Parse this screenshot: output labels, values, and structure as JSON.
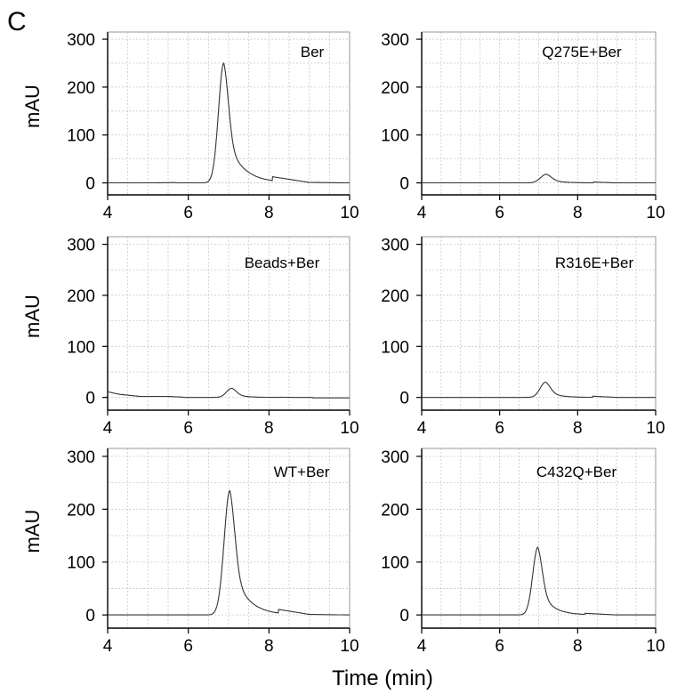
{
  "figure": {
    "panel_letter": "C"
  },
  "chart_data": [
    {
      "type": "line",
      "title": "",
      "inner_label": "Ber",
      "xlabel": "",
      "ylabel": "mAU",
      "xlim": [
        4,
        10
      ],
      "ylim": [
        -25,
        315
      ],
      "xticks": [
        4,
        6,
        8,
        10
      ],
      "yticks": [
        0,
        100,
        200,
        300
      ],
      "grid": true,
      "series": [
        {
          "peak": {
            "x": 6.88,
            "height": 250,
            "rise_sigma": 0.13,
            "tail_tau": 0.38
          },
          "baseline": 0,
          "x": [
            4,
            5,
            6,
            6.5,
            6.7,
            6.8,
            6.88,
            7.0,
            7.2,
            7.5,
            8,
            9,
            10
          ],
          "y": [
            0,
            0,
            1,
            11,
            102,
            198,
            250,
            193,
            114,
            53,
            14,
            1,
            0
          ]
        }
      ]
    },
    {
      "type": "line",
      "title": "",
      "inner_label": "Q275E+Ber",
      "xlabel": "",
      "ylabel": "",
      "xlim": [
        4,
        10
      ],
      "ylim": [
        -25,
        315
      ],
      "xticks": [
        4,
        6,
        8,
        10
      ],
      "yticks": [
        0,
        100,
        200,
        300
      ],
      "grid": true,
      "series": [
        {
          "peak": {
            "x": 7.2,
            "height": 18,
            "rise_sigma": 0.15,
            "tail_tau": 0.3
          },
          "baseline": 0,
          "x": [
            4,
            6,
            6.8,
            7.0,
            7.2,
            7.4,
            7.7,
            8,
            9,
            10
          ],
          "y": [
            0,
            0,
            1,
            7,
            18,
            12,
            6,
            3,
            0,
            0
          ]
        }
      ]
    },
    {
      "type": "line",
      "title": "",
      "inner_label": "Beads+Ber",
      "xlabel": "",
      "ylabel": "mAU",
      "xlim": [
        4,
        10
      ],
      "ylim": [
        -25,
        315
      ],
      "xticks": [
        4,
        6,
        8,
        10
      ],
      "yticks": [
        0,
        100,
        200,
        300
      ],
      "grid": true,
      "series": [
        {
          "peak": {
            "x": 7.08,
            "height": 18,
            "rise_sigma": 0.13,
            "tail_tau": 0.25
          },
          "baseline": 0,
          "x": [
            4,
            4.3,
            4.8,
            5.5,
            6,
            6.8,
            7.08,
            7.4,
            8,
            9,
            10
          ],
          "y": [
            11,
            6,
            2,
            2,
            0,
            2,
            18,
            7,
            1,
            -1,
            -1
          ]
        }
      ]
    },
    {
      "type": "line",
      "title": "",
      "inner_label": "R316E+Ber",
      "xlabel": "",
      "ylabel": "",
      "xlim": [
        4,
        10
      ],
      "ylim": [
        -25,
        315
      ],
      "xticks": [
        4,
        6,
        8,
        10
      ],
      "yticks": [
        0,
        100,
        200,
        300
      ],
      "grid": true,
      "series": [
        {
          "peak": {
            "x": 7.18,
            "height": 30,
            "rise_sigma": 0.14,
            "tail_tau": 0.28
          },
          "baseline": 0,
          "x": [
            4,
            6,
            6.8,
            7.0,
            7.18,
            7.4,
            7.7,
            8,
            9,
            10
          ],
          "y": [
            0,
            0,
            2,
            14,
            30,
            18,
            9,
            4,
            0,
            0
          ]
        }
      ]
    },
    {
      "type": "line",
      "title": "",
      "inner_label": "WT+Ber",
      "xlabel": "",
      "ylabel": "mAU",
      "xlim": [
        4,
        10
      ],
      "ylim": [
        -25,
        315
      ],
      "xticks": [
        4,
        6,
        8,
        10
      ],
      "yticks": [
        0,
        100,
        200,
        300
      ],
      "grid": true,
      "series": [
        {
          "peak": {
            "x": 7.03,
            "height": 235,
            "rise_sigma": 0.14,
            "tail_tau": 0.36
          },
          "baseline": 0,
          "x": [
            4,
            5,
            6,
            6.6,
            6.8,
            6.93,
            7.03,
            7.2,
            7.4,
            7.7,
            8.2,
            9,
            10
          ],
          "y": [
            0,
            0,
            0,
            14,
            93,
            180,
            235,
            162,
            95,
            42,
            11,
            1,
            0
          ]
        }
      ]
    },
    {
      "type": "line",
      "title": "",
      "inner_label": "C432Q+Ber",
      "xlabel": "",
      "ylabel": "",
      "xlim": [
        4,
        10
      ],
      "ylim": [
        -25,
        315
      ],
      "xticks": [
        4,
        6,
        8,
        10
      ],
      "yticks": [
        0,
        100,
        200,
        300
      ],
      "grid": true,
      "series": [
        {
          "peak": {
            "x": 6.98,
            "height": 128,
            "rise_sigma": 0.13,
            "tail_tau": 0.3
          },
          "baseline": 0,
          "x": [
            4,
            5,
            6,
            6.6,
            6.8,
            6.9,
            6.98,
            7.15,
            7.4,
            7.7,
            8.2,
            9,
            10
          ],
          "y": [
            0,
            0,
            0,
            9,
            58,
            104,
            128,
            92,
            45,
            17,
            3,
            0,
            0
          ]
        }
      ]
    }
  ],
  "shared_xlabel": "Time (min)"
}
